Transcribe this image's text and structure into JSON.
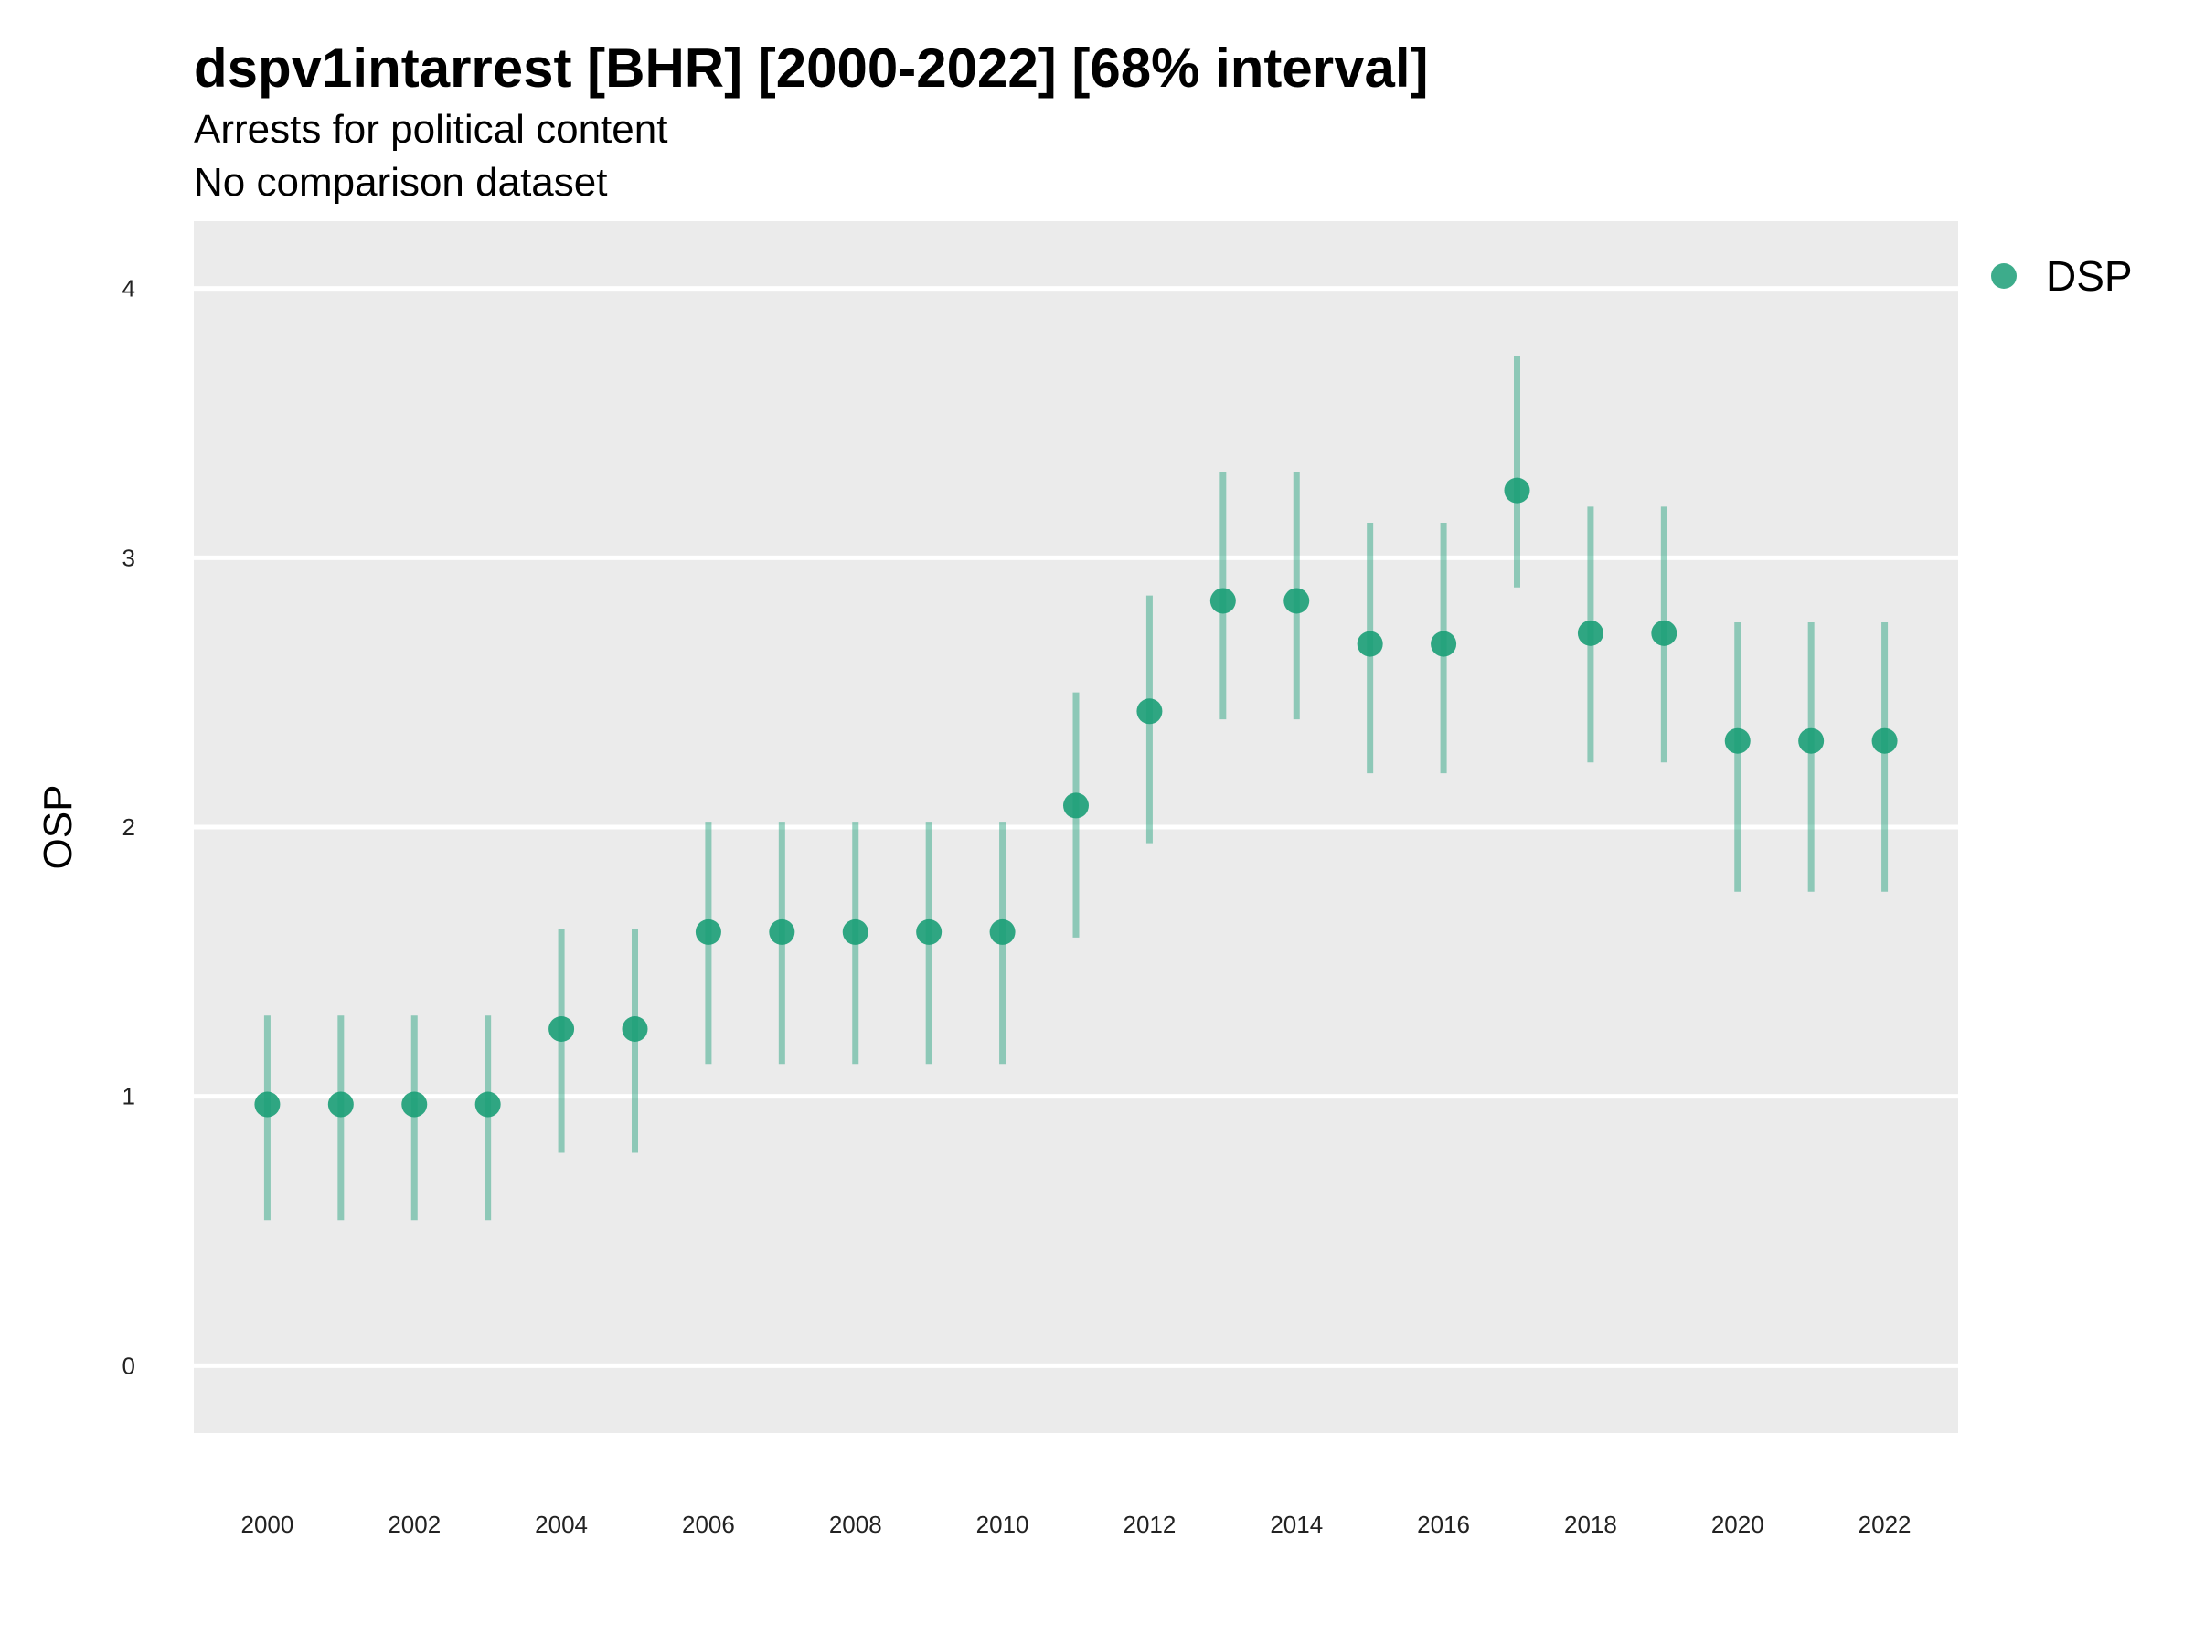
{
  "chart_data": {
    "type": "scatter",
    "title": "dspv1intarrest [BHR] [2000-2022] [68% interval]",
    "subtitle": "Arrests for political content",
    "subtitle2": "No comparison dataset",
    "xlabel": "",
    "ylabel": "OSP",
    "xlim": [
      1999,
      2023
    ],
    "ylim": [
      -0.25,
      4.25
    ],
    "x_ticks": [
      2000,
      2002,
      2004,
      2006,
      2008,
      2010,
      2012,
      2014,
      2016,
      2018,
      2020,
      2022
    ],
    "y_ticks": [
      0,
      1,
      2,
      3,
      4
    ],
    "grid": true,
    "legend_position": "right",
    "series": [
      {
        "name": "DSP",
        "color": "#1b9e77",
        "x": [
          2000,
          2001,
          2002,
          2003,
          2004,
          2005,
          2006,
          2007,
          2008,
          2009,
          2010,
          2011,
          2012,
          2013,
          2014,
          2015,
          2016,
          2017,
          2018,
          2019,
          2020,
          2021,
          2022
        ],
        "y": [
          0.97,
          0.97,
          0.97,
          0.97,
          1.25,
          1.25,
          1.61,
          1.61,
          1.61,
          1.61,
          1.61,
          2.08,
          2.43,
          2.84,
          2.84,
          2.68,
          2.68,
          3.25,
          2.72,
          2.72,
          2.32,
          2.32,
          2.32
        ],
        "lower": [
          0.54,
          0.54,
          0.54,
          0.54,
          0.79,
          0.79,
          1.12,
          1.12,
          1.12,
          1.12,
          1.12,
          1.59,
          1.94,
          2.4,
          2.4,
          2.2,
          2.2,
          2.89,
          2.24,
          2.24,
          1.76,
          1.76,
          1.76
        ],
        "upper": [
          1.3,
          1.3,
          1.3,
          1.3,
          1.62,
          1.62,
          2.02,
          2.02,
          2.02,
          2.02,
          2.02,
          2.5,
          2.86,
          3.32,
          3.32,
          3.13,
          3.13,
          3.75,
          3.19,
          3.19,
          2.76,
          2.76,
          2.76
        ]
      }
    ]
  }
}
